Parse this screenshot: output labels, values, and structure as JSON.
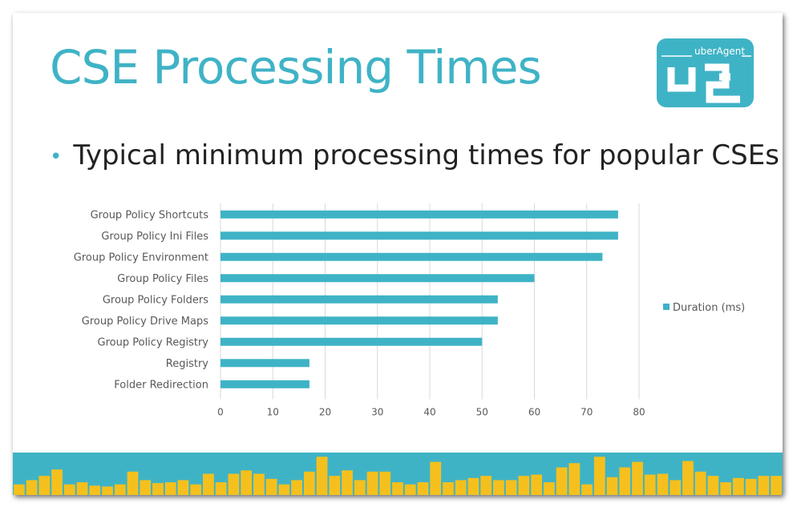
{
  "slide": {
    "title": "CSE Processing Times",
    "bullet": "Typical minimum processing times for popular CSEs"
  },
  "logo": {
    "text": "uberAgent",
    "color": "#3fb3c6"
  },
  "chart_data": {
    "type": "bar",
    "orientation": "horizontal",
    "categories": [
      "Group Policy Shortcuts",
      "Group Policy Ini Files",
      "Group Policy Environment",
      "Group Policy Files",
      "Group Policy Folders",
      "Group Policy Drive Maps",
      "Group Policy Registry",
      "Registry",
      "Folder Redirection"
    ],
    "series": [
      {
        "name": "Duration (ms)",
        "values": [
          76,
          76,
          73,
          60,
          53,
          53,
          50,
          17,
          17
        ],
        "color": "#3fb3c6"
      }
    ],
    "xlim": [
      0,
      80
    ],
    "xticks": [
      0,
      10,
      20,
      30,
      40,
      50,
      60,
      70,
      80
    ],
    "grid": true,
    "legend_position": "right"
  },
  "footer": {
    "bar_color": "#f5c01d",
    "background": "#3fb3c6",
    "levels": [
      0.25,
      0.35,
      0.45,
      0.6,
      0.25,
      0.3,
      0.22,
      0.2,
      0.25,
      0.55,
      0.35,
      0.28,
      0.3,
      0.35,
      0.25,
      0.5,
      0.3,
      0.5,
      0.58,
      0.5,
      0.38,
      0.25,
      0.35,
      0.55,
      0.9,
      0.45,
      0.58,
      0.35,
      0.55,
      0.55,
      0.3,
      0.25,
      0.3,
      0.78,
      0.3,
      0.35,
      0.4,
      0.45,
      0.35,
      0.35,
      0.45,
      0.48,
      0.3,
      0.65,
      0.75,
      0.25,
      0.9,
      0.42,
      0.65,
      0.78,
      0.48,
      0.5,
      0.35,
      0.8,
      0.55,
      0.45,
      0.3,
      0.4,
      0.38,
      0.45,
      0.45
    ]
  }
}
